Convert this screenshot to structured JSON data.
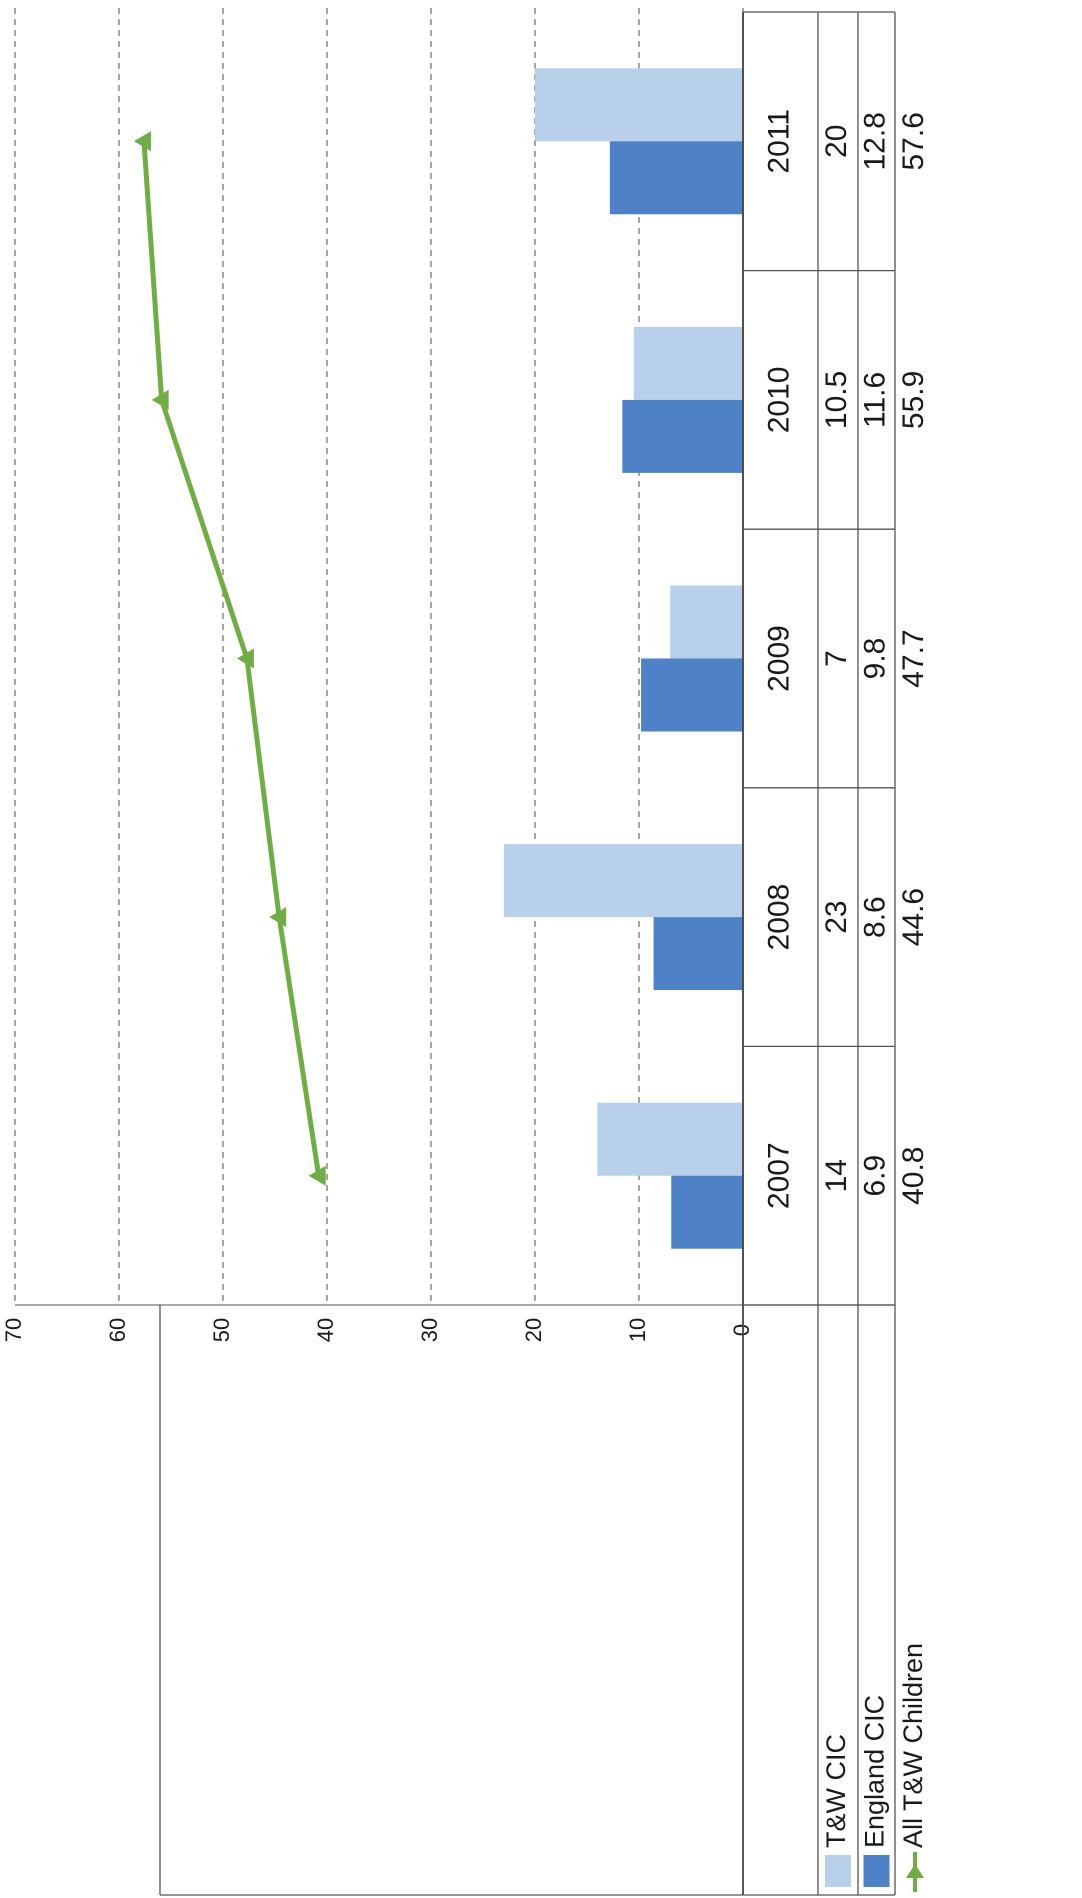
{
  "chart_data": {
    "type": "bar",
    "title": "",
    "xlabel": "",
    "ylabel": "",
    "orientation": "rotated-90-ccw",
    "ylim": [
      0,
      70
    ],
    "y_ticks": [
      "0",
      "10",
      "20",
      "30",
      "40",
      "50",
      "60",
      "70"
    ],
    "grid": true,
    "legend": "table-left",
    "categories": [
      "2007",
      "2008",
      "2009",
      "2010",
      "2011"
    ],
    "series": [
      {
        "name": "T&W CIC",
        "type": "bar",
        "color": "#b8d0ea",
        "values": [
          14,
          23,
          7,
          10.5,
          20
        ],
        "labels": [
          "14",
          "23",
          "7",
          "10.5",
          "20"
        ]
      },
      {
        "name": "England CIC",
        "type": "bar",
        "color": "#4f81c6",
        "values": [
          6.9,
          8.6,
          9.8,
          11.6,
          12.8
        ],
        "labels": [
          "6.9",
          "8.6",
          "9.8",
          "11.6",
          "12.8"
        ]
      },
      {
        "name": "All T&W Children",
        "type": "line",
        "color": "#71ad47",
        "marker": "triangle",
        "values": [
          40.8,
          44.6,
          47.7,
          55.9,
          57.6
        ],
        "labels": [
          "40.8",
          "44.6",
          "47.7",
          "55.9",
          "57.6"
        ]
      }
    ]
  }
}
